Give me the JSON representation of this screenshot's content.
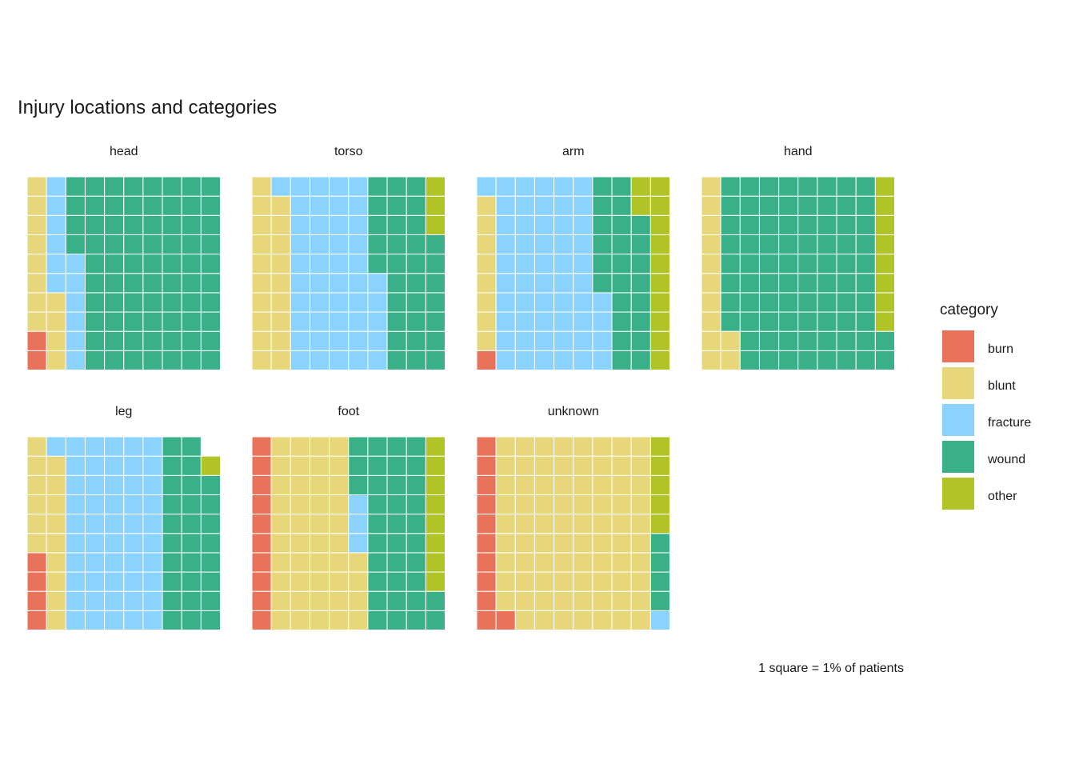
{
  "chart_data": {
    "type": "waffle",
    "title": "Injury locations and categories",
    "caption": "1 square = 1% of patients",
    "legend": {
      "title": "category",
      "position": "right"
    },
    "categories": [
      "burn",
      "blunt",
      "fracture",
      "wound",
      "other"
    ],
    "colors": {
      "burn": "#E9735A",
      "blunt": "#E8D77A",
      "fracture": "#8AD3FE",
      "wound": "#3AB088",
      "other": "#B0C428"
    },
    "grid": {
      "rows": 10,
      "cols": 10,
      "fill_order": "column-wise from bottom-left"
    },
    "panels": [
      {
        "label": "head",
        "values": {
          "burn": 2,
          "blunt": 12,
          "fracture": 12,
          "wound": 74,
          "other": 0
        }
      },
      {
        "label": "torso",
        "values": {
          "burn": 0,
          "blunt": 19,
          "fracture": 46,
          "wound": 32,
          "other": 3
        }
      },
      {
        "label": "arm",
        "values": {
          "burn": 1,
          "blunt": 8,
          "fracture": 55,
          "wound": 24,
          "other": 12
        }
      },
      {
        "label": "hand",
        "values": {
          "burn": 0,
          "blunt": 12,
          "fracture": 0,
          "wound": 80,
          "other": 8
        }
      },
      {
        "label": "leg",
        "values": {
          "burn": 4,
          "blunt": 15,
          "fracture": 51,
          "wound": 28,
          "other": 1
        }
      },
      {
        "label": "foot",
        "values": {
          "burn": 10,
          "blunt": 44,
          "fracture": 3,
          "wound": 35,
          "other": 8
        }
      },
      {
        "label": "unknown",
        "values": {
          "burn": 11,
          "blunt": 79,
          "fracture": 1,
          "wound": 4,
          "other": 5
        }
      }
    ]
  }
}
